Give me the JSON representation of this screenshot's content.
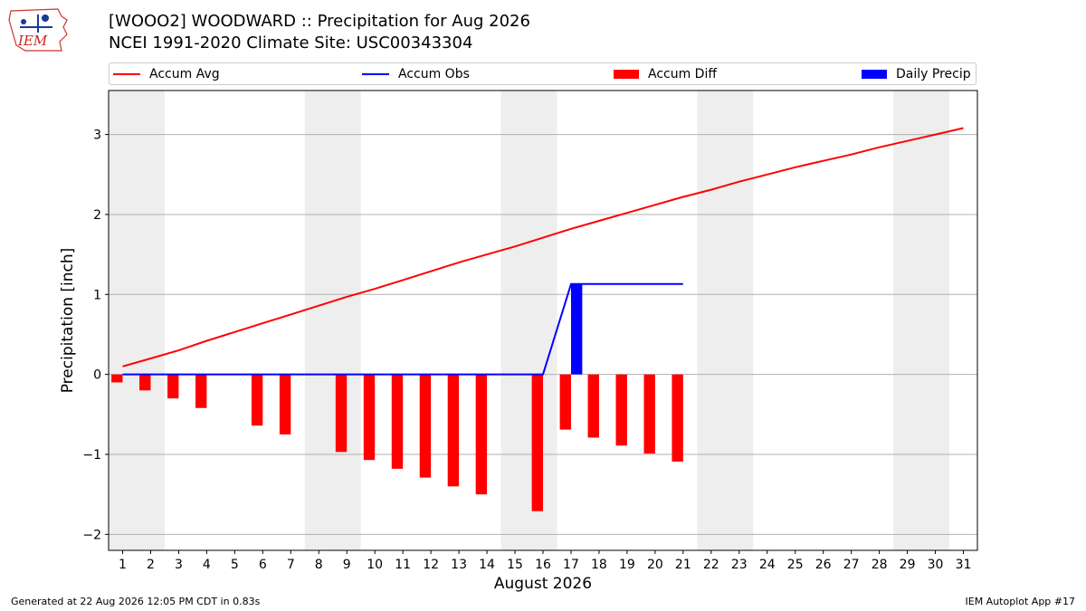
{
  "header": {
    "title_line1": "[WOOO2] WOODWARD :: Precipitation for Aug 2026",
    "title_line2": "NCEI 1991-2020 Climate Site: USC00343304",
    "logo_text": "IEM"
  },
  "legend": {
    "items": [
      {
        "label": "Accum Avg",
        "kind": "line",
        "color": "#ff0000"
      },
      {
        "label": "Accum Obs",
        "kind": "line",
        "color": "#0000ff"
      },
      {
        "label": "Accum Diff",
        "kind": "patch",
        "color": "#ff0000"
      },
      {
        "label": "Daily Precip",
        "kind": "patch",
        "color": "#0000ff"
      }
    ]
  },
  "chart_data": {
    "type": "bar",
    "xlabel": "August 2026",
    "ylabel": "Precipitation [inch]",
    "xlim": [
      0.5,
      31.5
    ],
    "ylim": [
      -2.2,
      3.55
    ],
    "x_ticks": [
      1,
      2,
      3,
      4,
      5,
      6,
      7,
      8,
      9,
      10,
      11,
      12,
      13,
      14,
      15,
      16,
      17,
      18,
      19,
      20,
      21,
      22,
      23,
      24,
      25,
      26,
      27,
      28,
      29,
      30,
      31
    ],
    "y_ticks": [
      -2,
      -1,
      0,
      1,
      2,
      3
    ],
    "y_tick_labels": [
      "−2",
      "−1",
      "0",
      "1",
      "2",
      "3"
    ],
    "weekend_bands": [
      [
        1,
        2
      ],
      [
        8,
        9
      ],
      [
        15,
        16
      ],
      [
        22,
        23
      ],
      [
        29,
        30
      ]
    ],
    "band_color": "#eeeeee",
    "grid": "horizontal",
    "series": [
      {
        "name": "Accum Avg",
        "kind": "line",
        "color": "#ff0000",
        "x": [
          1,
          2,
          3,
          4,
          5,
          6,
          7,
          8,
          9,
          10,
          11,
          12,
          13,
          14,
          15,
          16,
          17,
          18,
          19,
          20,
          21,
          22,
          23,
          24,
          25,
          26,
          27,
          28,
          29,
          30,
          31
        ],
        "values": [
          0.1,
          0.2,
          0.3,
          0.42,
          0.53,
          0.64,
          0.75,
          0.86,
          0.97,
          1.07,
          1.18,
          1.29,
          1.4,
          1.5,
          1.6,
          1.71,
          1.82,
          1.92,
          2.02,
          2.12,
          2.22,
          2.31,
          2.41,
          2.5,
          2.59,
          2.67,
          2.75,
          2.84,
          2.92,
          3.0,
          3.08
        ]
      },
      {
        "name": "Accum Obs",
        "kind": "line",
        "color": "#0000ff",
        "x": [
          1,
          2,
          3,
          4,
          5,
          6,
          7,
          8,
          9,
          10,
          11,
          12,
          13,
          14,
          15,
          16,
          17,
          18,
          19,
          20,
          21
        ],
        "values": [
          0,
          0,
          0,
          0,
          null,
          0,
          0,
          null,
          0,
          0,
          0,
          0,
          0,
          0,
          null,
          0,
          1.13,
          1.13,
          1.13,
          1.13,
          1.13
        ]
      },
      {
        "name": "Accum Diff",
        "kind": "bar",
        "color": "#ff0000",
        "offset": -0.2,
        "x": [
          1,
          2,
          3,
          4,
          5,
          6,
          7,
          8,
          9,
          10,
          11,
          12,
          13,
          14,
          15,
          16,
          17,
          18,
          19,
          20,
          21
        ],
        "values": [
          -0.1,
          -0.2,
          -0.3,
          -0.42,
          null,
          -0.64,
          -0.75,
          null,
          -0.97,
          -1.07,
          -1.18,
          -1.29,
          -1.4,
          -1.5,
          null,
          -1.71,
          -0.69,
          -0.79,
          -0.89,
          -0.99,
          -1.09
        ]
      },
      {
        "name": "Daily Precip",
        "kind": "bar",
        "color": "#0000ff",
        "offset": 0.2,
        "x": [
          17
        ],
        "values": [
          1.13
        ]
      }
    ]
  },
  "footer": {
    "generated": "Generated at 22 Aug 2026 12:05 PM CDT in 0.83s",
    "app": "IEM Autoplot App #17"
  }
}
